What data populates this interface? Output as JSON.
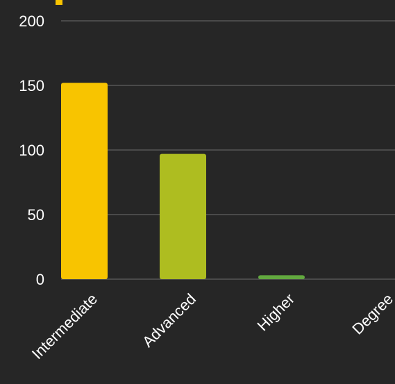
{
  "chart_data": {
    "type": "bar",
    "categories": [
      "Intermediate",
      "Advanced",
      "Higher",
      "Degree"
    ],
    "values": [
      152,
      97,
      3,
      0
    ],
    "colors": [
      "#f8c400",
      "#aebd20",
      "#62a83f",
      "#3f8f4f"
    ],
    "ylim": [
      0,
      200
    ],
    "yticks": [
      0,
      50,
      100,
      150,
      200
    ],
    "grid": true,
    "legend_marker_color": "#f8c400"
  }
}
